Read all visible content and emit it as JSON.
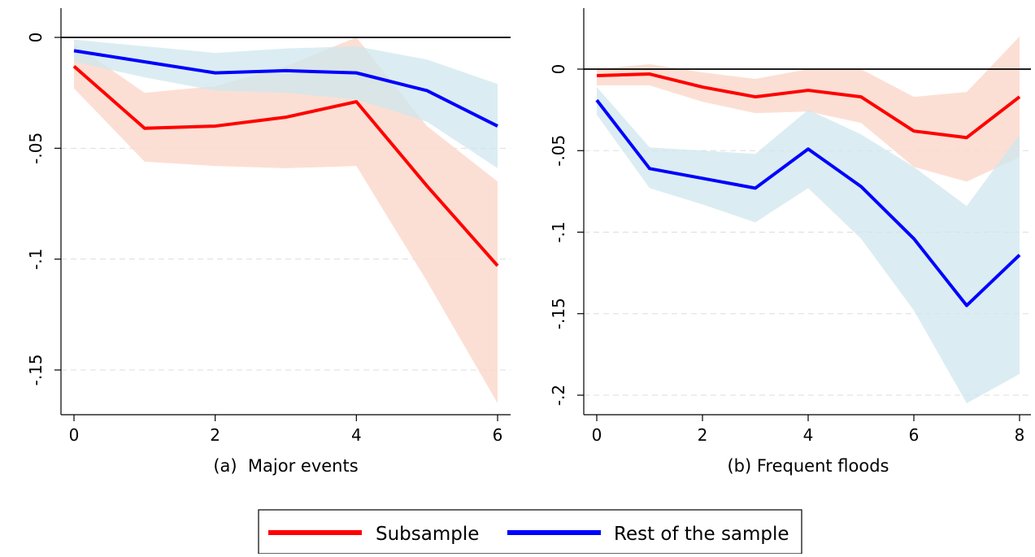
{
  "colors": {
    "subsample_line": "#ff0000",
    "subsample_band": "#fcd9cd",
    "rest_line": "#0000ff",
    "rest_band": "#cfe7ef",
    "zero_line": "#000000",
    "gridline": "#dddddd"
  },
  "legend": {
    "placement": "bottom-center",
    "subsample_label": "Subsample",
    "rest_label": "Rest of the sample"
  },
  "chart_data": [
    {
      "type": "line",
      "title": "(a)  Major events",
      "xlim": [
        0,
        6
      ],
      "ylim": [
        -0.17,
        0.0
      ],
      "x_ticks": [
        "0",
        "2",
        "4",
        "6"
      ],
      "x_tick_values": [
        0,
        2,
        4,
        6
      ],
      "y_ticks": [
        "0",
        "-.05",
        "-.1",
        "-.15"
      ],
      "y_tick_values": [
        0,
        -0.05,
        -0.1,
        -0.15
      ],
      "grid": "dashed horizontal",
      "series": [
        {
          "name": "Subsample",
          "x": [
            0,
            1,
            2,
            3,
            4,
            5,
            6
          ],
          "y": [
            -0.013,
            -0.041,
            -0.04,
            -0.036,
            -0.029,
            -0.067,
            -0.103
          ],
          "band_upper": [
            -0.003,
            -0.025,
            -0.022,
            -0.013,
            0.0,
            -0.04,
            -0.065
          ],
          "band_lower": [
            -0.023,
            -0.056,
            -0.058,
            -0.059,
            -0.058,
            -0.11,
            -0.165
          ]
        },
        {
          "name": "Rest of the sample",
          "x": [
            0,
            1,
            2,
            3,
            4,
            5,
            6
          ],
          "y": [
            -0.006,
            -0.011,
            -0.016,
            -0.015,
            -0.016,
            -0.024,
            -0.04
          ],
          "band_upper": [
            -0.001,
            -0.004,
            -0.007,
            -0.005,
            -0.004,
            -0.01,
            -0.021
          ],
          "band_lower": [
            -0.011,
            -0.018,
            -0.024,
            -0.025,
            -0.028,
            -0.038,
            -0.059
          ]
        }
      ]
    },
    {
      "type": "line",
      "title": "(b) Frequent floods",
      "xlim": [
        0,
        8
      ],
      "ylim": [
        -0.215,
        0.025
      ],
      "x_ticks": [
        "0",
        "2",
        "4",
        "6",
        "8"
      ],
      "x_tick_values": [
        0,
        2,
        4,
        6,
        8
      ],
      "y_ticks": [
        "0",
        "-.05",
        "-.1",
        "-.15",
        "-.2"
      ],
      "y_tick_values": [
        0,
        -0.05,
        -0.1,
        -0.15,
        -0.2
      ],
      "grid": "dashed horizontal",
      "series": [
        {
          "name": "Subsample",
          "x": [
            0,
            1,
            2,
            3,
            4,
            5,
            6,
            7,
            8
          ],
          "y": [
            -0.004,
            -0.003,
            -0.011,
            -0.017,
            -0.013,
            -0.017,
            -0.038,
            -0.042,
            -0.017
          ],
          "band_upper": [
            0.0,
            0.003,
            -0.002,
            -0.006,
            0.0,
            0.0,
            -0.017,
            -0.014,
            0.02
          ],
          "band_lower": [
            -0.01,
            -0.01,
            -0.02,
            -0.027,
            -0.026,
            -0.033,
            -0.06,
            -0.069,
            -0.054
          ]
        },
        {
          "name": "Rest of the sample",
          "x": [
            0,
            1,
            2,
            3,
            4,
            5,
            6,
            7,
            8
          ],
          "y": [
            -0.019,
            -0.061,
            -0.067,
            -0.073,
            -0.049,
            -0.072,
            -0.104,
            -0.145,
            -0.114
          ],
          "band_upper": [
            -0.011,
            -0.048,
            -0.05,
            -0.052,
            -0.025,
            -0.04,
            -0.06,
            -0.084,
            -0.04
          ],
          "band_lower": [
            -0.028,
            -0.073,
            -0.083,
            -0.094,
            -0.073,
            -0.104,
            -0.148,
            -0.205,
            -0.187
          ]
        }
      ]
    }
  ]
}
